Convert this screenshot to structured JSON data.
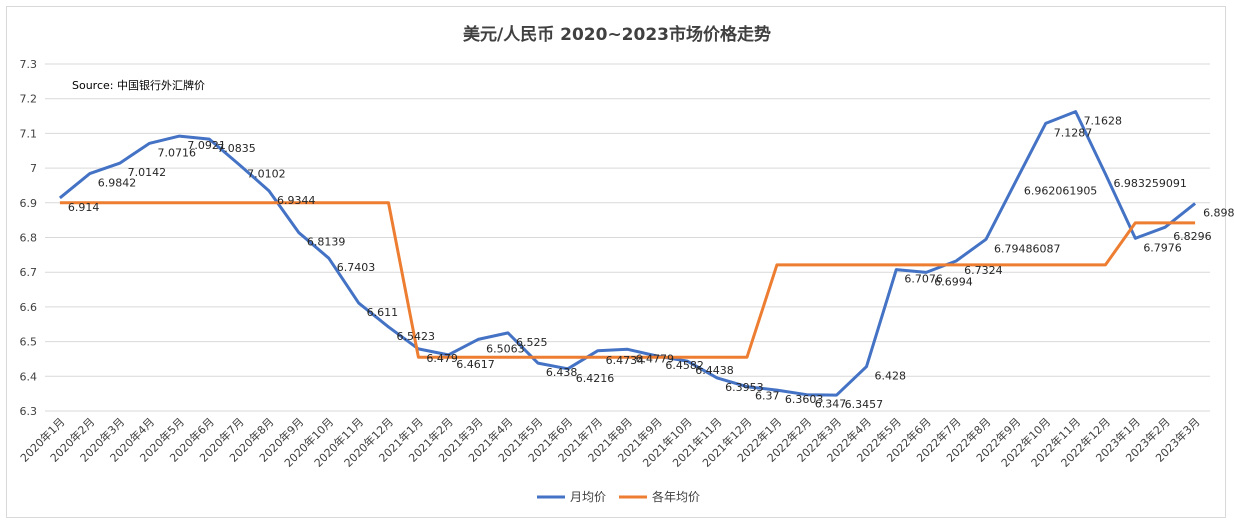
{
  "chart_data": {
    "type": "line",
    "title": "美元/人民币 2020~2023市场价格走势",
    "annotation": "Source:  中国银行外汇牌价",
    "ylim": [
      6.3,
      7.3
    ],
    "yticks": [
      "6.3",
      "6.4",
      "6.5",
      "6.6",
      "6.7",
      "6.8",
      "6.9",
      "7",
      "7.1",
      "7.2",
      "7.3"
    ],
    "grid": true,
    "legend_position": "bottom",
    "categories": [
      "2020年1月",
      "2020年2月",
      "2020年3月",
      "2020年4月",
      "2020年5月",
      "2020年6月",
      "2020年7月",
      "2020年8月",
      "2020年9月",
      "2020年10月",
      "2020年11月",
      "2020年12月",
      "2021年1月",
      "2021年2月",
      "2021年3月",
      "2021年4月",
      "2021年5月",
      "2021年6月",
      "2021年7月",
      "2021年8月",
      "2021年9月",
      "2021年10月",
      "2021年11月",
      "2021年12月",
      "2022年1月",
      "2022年2月",
      "2022年3月",
      "2022年4月",
      "2022年5月",
      "2022年6月",
      "2022年7月",
      "2022年8月",
      "2022年9月",
      "2022年10月",
      "2022年11月",
      "2022年12月",
      "2023年1月",
      "2023年2月",
      "2023年3月"
    ],
    "series": [
      {
        "name": "月均价",
        "color": "#4472c4",
        "values": [
          6.914,
          6.9842,
          7.0142,
          7.0716,
          7.0921,
          7.0835,
          7.0102,
          6.9344,
          6.8139,
          6.7403,
          6.611,
          6.5423,
          6.479,
          6.4617,
          6.5063,
          6.525,
          6.438,
          6.4216,
          6.4734,
          6.4779,
          6.4582,
          6.4438,
          6.3953,
          6.37,
          6.3603,
          6.347,
          6.3457,
          6.428,
          6.7076,
          6.6994,
          6.7324,
          6.79486087,
          6.962061905,
          7.1287,
          7.1628,
          6.983259091,
          6.7976,
          6.8296,
          6.8982
        ],
        "labels": [
          "6.914",
          "6.9842",
          "7.0142",
          "7.0716",
          "7.0921",
          "7.0835",
          "7.0102",
          "6.9344",
          "6.8139",
          "6.7403",
          "6.611",
          "6.5423",
          "6.479",
          "6.4617",
          "6.5063",
          "6.525",
          "6.438",
          "6.4216",
          "6.4734",
          "6.4779",
          "6.4582",
          "6.4438",
          "6.3953",
          "6.37",
          "6.3603",
          "6.347",
          "6.3457",
          "6.428",
          "6.7076",
          "6.6994",
          "6.7324",
          "6.79486087",
          "6.962061905",
          "7.1287",
          "7.1628",
          "6.983259091",
          "6.7976",
          "6.8296",
          "6.8982"
        ]
      },
      {
        "name": "各年均价",
        "color": "#ed7d31",
        "values": [
          6.9,
          6.9,
          6.9,
          6.9,
          6.9,
          6.9,
          6.9,
          6.9,
          6.9,
          6.9,
          6.9,
          6.9,
          6.455,
          6.455,
          6.455,
          6.455,
          6.455,
          6.455,
          6.455,
          6.455,
          6.455,
          6.455,
          6.455,
          6.455,
          6.721,
          6.721,
          6.721,
          6.721,
          6.721,
          6.721,
          6.721,
          6.721,
          6.721,
          6.721,
          6.721,
          6.721,
          6.842,
          6.842,
          6.842
        ]
      }
    ]
  }
}
